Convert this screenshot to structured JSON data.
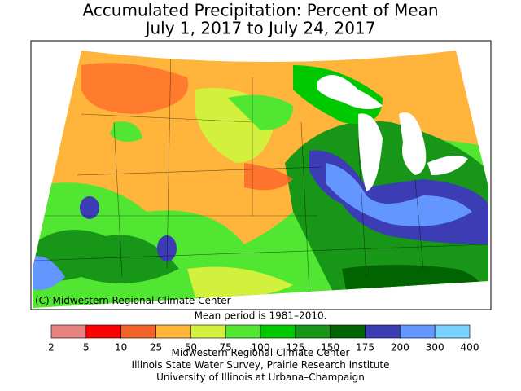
{
  "title": [
    "Accumulated Precipitation: Percent of Mean",
    "July 1, 2017 to July 24, 2017"
  ],
  "map": {
    "credit": "(C) Midwestern Regional Climate Center"
  },
  "note": "Mean period is 1981–2010.",
  "legend": {
    "ticks": [
      "2",
      "5",
      "10",
      "25",
      "50",
      "75",
      "100",
      "125",
      "150",
      "175",
      "200",
      "300",
      "400"
    ],
    "colors": [
      "#e88080",
      "#ff0000",
      "#f06428",
      "#ffb43c",
      "#d2f03c",
      "#50e632",
      "#00c800",
      "#189618",
      "#006400",
      "#3c3cb4",
      "#6496ff",
      "#78d2ff",
      "#dcaaff"
    ]
  },
  "footer": [
    "Midwestern Regional Climate Center",
    "Illinois State Water Survey, Prairie Research Institute",
    "University of Illinois at Urbana–Champaign"
  ]
}
